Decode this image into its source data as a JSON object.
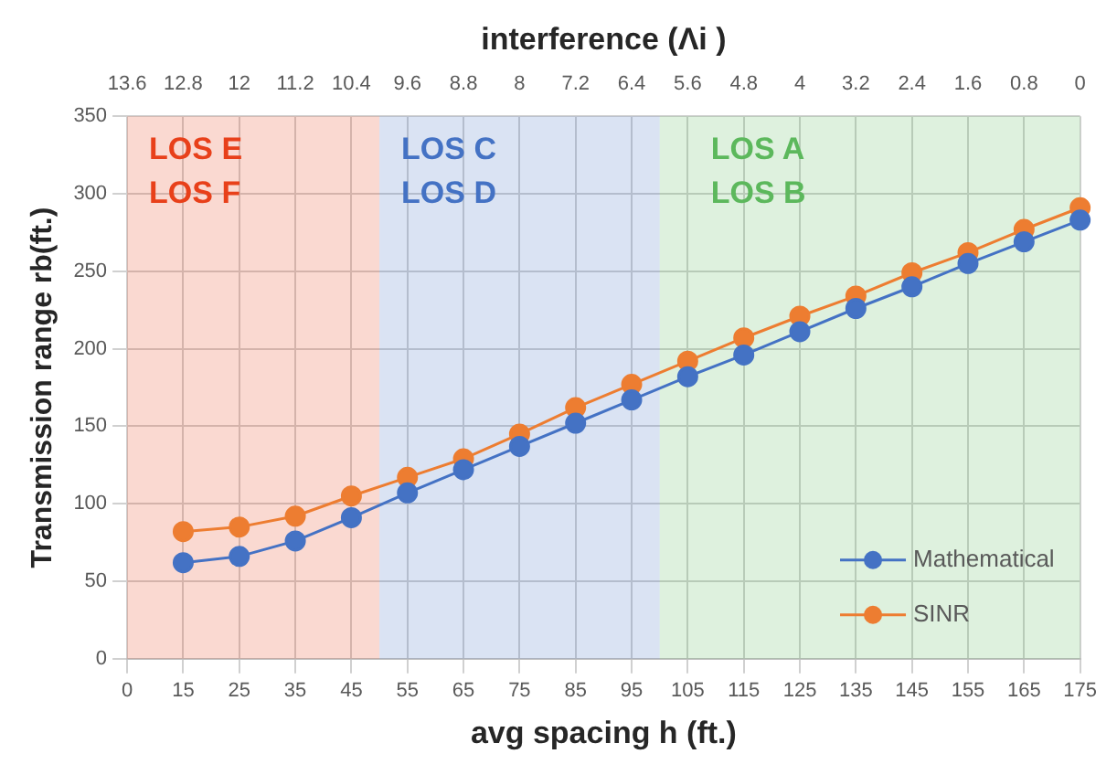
{
  "chart_data": {
    "type": "line",
    "xlabel": "avg spacing h (ft.)",
    "ylabel": "Transmission range rb(ft.)",
    "x2label": "interference (Λi )",
    "categories": [
      "0",
      "15",
      "25",
      "35",
      "45",
      "55",
      "65",
      "75",
      "85",
      "95",
      "105",
      "115",
      "125",
      "135",
      "145",
      "155",
      "165",
      "175"
    ],
    "series": [
      {
        "name": "Mathematical",
        "color": "#4472c4",
        "values": [
          null,
          62,
          66,
          76,
          91,
          107,
          122,
          137,
          152,
          167,
          182,
          196,
          211,
          226,
          240,
          255,
          269,
          283
        ]
      },
      {
        "name": "SINR",
        "color": "#ed7d31",
        "values": [
          null,
          82,
          85,
          92,
          105,
          117,
          129,
          145,
          162,
          177,
          192,
          207,
          221,
          234,
          249,
          262,
          277,
          291
        ]
      }
    ],
    "ylim": [
      0,
      350
    ],
    "yticks": [
      0,
      50,
      100,
      150,
      200,
      250,
      300,
      350
    ],
    "x2lim": [
      13.6,
      0
    ],
    "x2ticks": [
      13.6,
      12.8,
      12,
      11.2,
      10.4,
      9.6,
      8.8,
      8,
      7.2,
      6.4,
      5.6,
      4.8,
      4,
      3.2,
      2.4,
      1.6,
      0.8,
      0
    ],
    "bands": [
      {
        "axis": "x2",
        "from": 13.6,
        "to": 10,
        "label": "LOS E\nLOS F",
        "color": "#e8401a"
      },
      {
        "axis": "x2",
        "from": 10,
        "to": 6,
        "label": "LOS C\nLOS D",
        "color": "#4472c4"
      },
      {
        "axis": "x2",
        "from": 6,
        "to": 0,
        "label": "LOS A\nLOS B",
        "color": "#5cb85c"
      }
    ],
    "grid": true,
    "legend": "bottom right",
    "marker": "circle",
    "line_style": "solid"
  }
}
